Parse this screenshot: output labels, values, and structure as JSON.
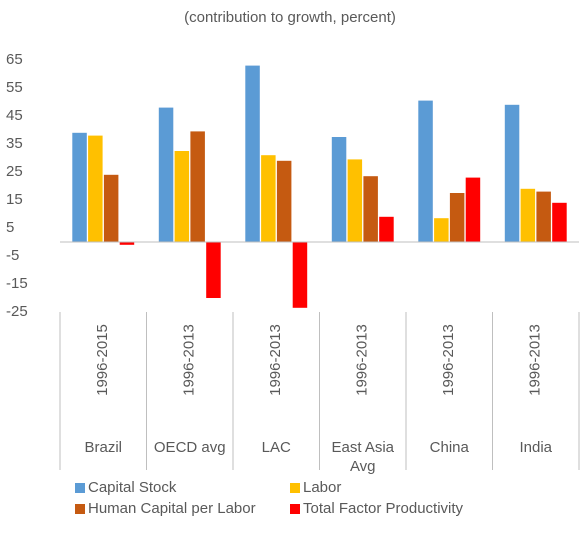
{
  "chart_data": {
    "type": "bar",
    "title": "(contribution to growth, percent)",
    "categories": [
      "Brazil",
      "OECD avg",
      "LAC",
      "East Asia Avg",
      "China",
      "India"
    ],
    "periods": [
      "1996-2015",
      "1996-2013",
      "1996-2013",
      "1996-2013",
      "1996-2013",
      "1996-2013"
    ],
    "series": [
      {
        "name": "Capital Stock",
        "color": "#5b9bd5",
        "values": [
          39,
          48,
          63,
          37.5,
          50.5,
          49
        ]
      },
      {
        "name": "Labor",
        "color": "#ffc000",
        "values": [
          38,
          32.5,
          31,
          29.5,
          8.5,
          19
        ]
      },
      {
        "name": "Human Capital per Labor",
        "color": "#c55a11",
        "values": [
          24,
          39.5,
          29,
          23.5,
          17.5,
          18
        ]
      },
      {
        "name": "Total Factor Productivity",
        "color": "#ff0000",
        "values": [
          -1,
          -20,
          -23.5,
          9,
          23,
          14
        ]
      }
    ],
    "ylim": [
      -25,
      65
    ],
    "yticks": [
      -25,
      -15,
      -5,
      5,
      15,
      25,
      35,
      45,
      55,
      65
    ],
    "grid": false,
    "legend": "bottom"
  }
}
